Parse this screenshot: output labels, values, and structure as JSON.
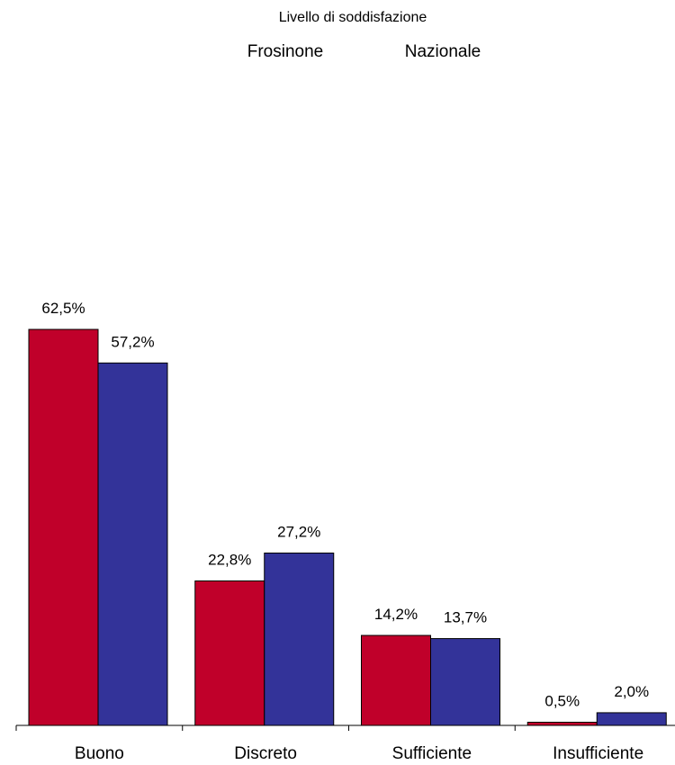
{
  "chart_data": {
    "type": "bar",
    "title": "Livello di soddisfazione",
    "categories": [
      "Buono",
      "Discreto",
      "Sufficiente",
      "Insufficiente"
    ],
    "series": [
      {
        "name": "Frosinone",
        "color": "#c0002a",
        "values": [
          62.5,
          22.8,
          14.2,
          0.5
        ],
        "labels": [
          "62,5%",
          "22,8%",
          "14,2%",
          "0,5%"
        ]
      },
      {
        "name": "Nazionale",
        "color": "#333399",
        "values": [
          57.2,
          27.2,
          13.7,
          2.0
        ],
        "labels": [
          "57,2%",
          "27,2%",
          "13,7%",
          "2,0%"
        ]
      }
    ],
    "ylim": [
      0,
      62.5
    ],
    "grid": false,
    "legend": "top"
  }
}
